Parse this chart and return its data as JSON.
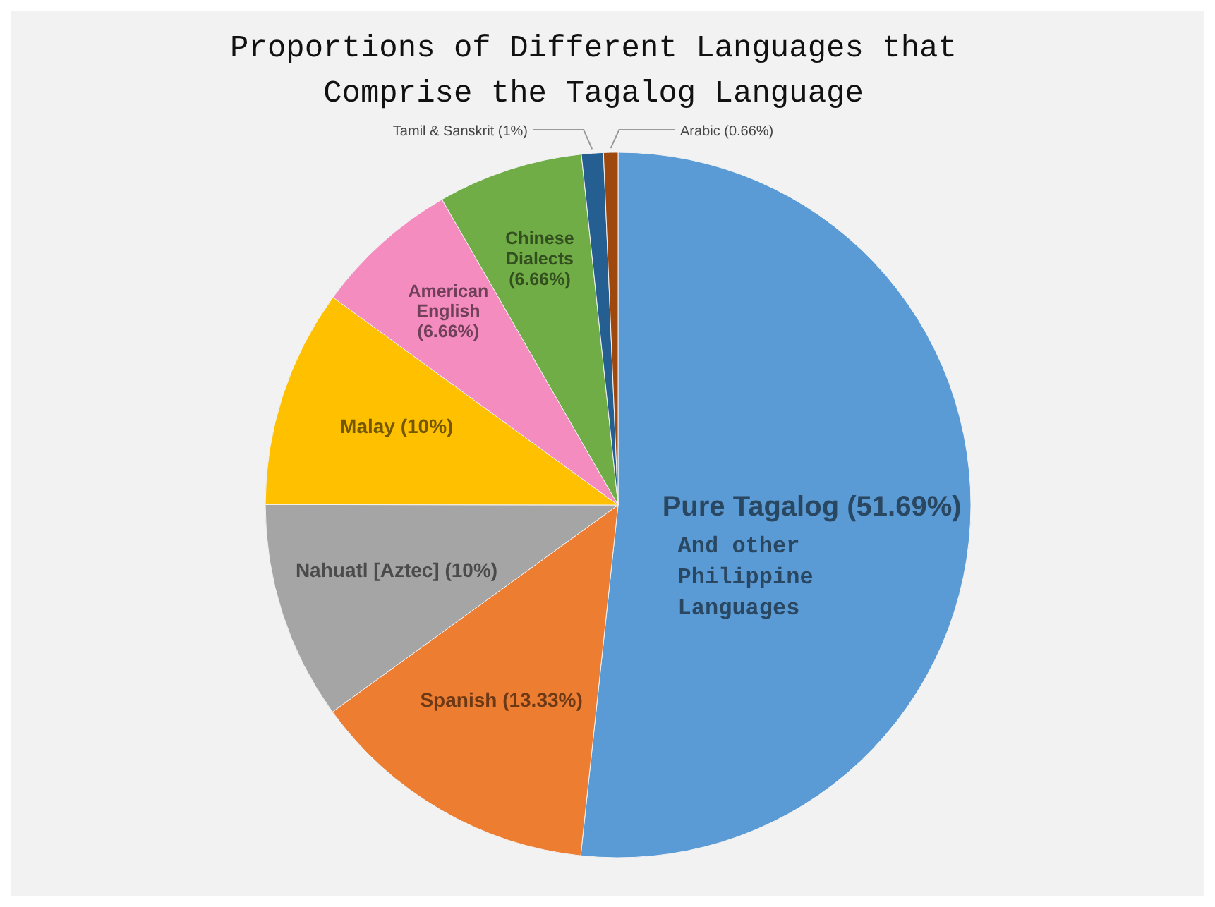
{
  "chart_data": {
    "type": "pie",
    "title": "Proportions of Different Languages that Comprise the Tagalog Language",
    "categories": [
      "Pure Tagalog",
      "Spanish",
      "Nahuatl [Aztec]",
      "Malay",
      "American English",
      "Chinese Dialects",
      "Tamil & Sanskrit",
      "Arabic"
    ],
    "values": [
      51.69,
      13.33,
      10,
      10,
      6.66,
      6.66,
      1,
      0.66
    ],
    "value_labels": [
      "(51.69%)",
      "(13.33%)",
      "(10%)",
      "(10%)",
      "(6.66%)",
      "(6.66%)",
      "(1%)",
      "(0.66%)"
    ],
    "colors": [
      "#5b9bd5",
      "#ed7d31",
      "#a5a5a5",
      "#ffc000",
      "#f48cbf",
      "#70ad47",
      "#255e91",
      "#9e480e"
    ],
    "annotations": [
      {
        "text": "And other Philippine Languages",
        "x": "Pure Tagalog"
      }
    ]
  }
}
